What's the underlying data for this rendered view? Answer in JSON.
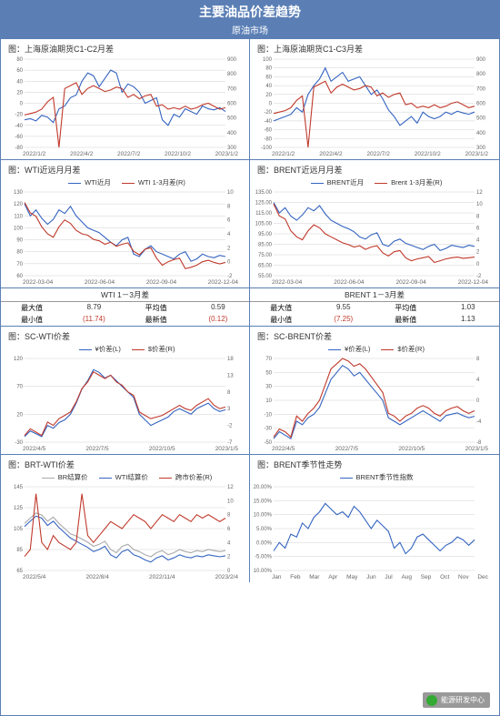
{
  "header": {
    "title": "主要油品价差趋势",
    "subtitle": "原油市场"
  },
  "colors": {
    "blue": "#3464c0",
    "red": "#c0392b",
    "grey": "#aaaaaa",
    "grid": "#d0d0d0",
    "bg": "#ffffff",
    "frame": "#5b7fb5"
  },
  "charts": {
    "c1c2": {
      "title": "图：上海原油期货C1-C2月差",
      "y1_ticks": [
        -80,
        -60,
        -40,
        -20,
        0,
        20,
        40,
        60,
        80
      ],
      "y2_ticks": [
        300,
        400,
        500,
        600,
        700,
        800,
        900
      ],
      "x_labels": [
        "2022/1/2",
        "2022/4/2",
        "2022/7/2",
        "2022/10/2",
        "2023/1/2"
      ],
      "series": [
        {
          "color": "#3464c0",
          "axis": "y1",
          "data": [
            -30,
            -28,
            -32,
            -22,
            -25,
            -35,
            -10,
            -5,
            10,
            15,
            40,
            55,
            50,
            30,
            45,
            60,
            55,
            20,
            35,
            30,
            20,
            0,
            5,
            10,
            -30,
            -40,
            -20,
            -25,
            -10,
            -15,
            -20,
            -5,
            -10,
            -12,
            -8,
            -15
          ]
        },
        {
          "color": "#c0392b",
          "axis": "y2",
          "data": [
            520,
            530,
            540,
            560,
            610,
            640,
            -200,
            700,
            720,
            740,
            660,
            700,
            720,
            700,
            680,
            690,
            710,
            700,
            640,
            660,
            630,
            650,
            660,
            580,
            590,
            560,
            570,
            560,
            580,
            560,
            570,
            590,
            600,
            580,
            560,
            570
          ]
        }
      ]
    },
    "c1c3": {
      "title": "图：上海原油期货C1-C3月差",
      "y1_ticks": [
        -100,
        -80,
        -60,
        -40,
        -20,
        0,
        20,
        40,
        60,
        80,
        100
      ],
      "y2_ticks": [
        300,
        400,
        500,
        600,
        700,
        800,
        900
      ],
      "x_labels": [
        "2022/1/2",
        "2022/4/2",
        "2022/7/2",
        "2022/10/2",
        "2023/1/2"
      ],
      "series": [
        {
          "color": "#3464c0",
          "axis": "y1",
          "data": [
            -40,
            -35,
            -30,
            -25,
            -10,
            -20,
            20,
            40,
            55,
            80,
            50,
            60,
            70,
            50,
            55,
            60,
            40,
            20,
            30,
            10,
            -15,
            -30,
            -50,
            -40,
            -30,
            -45,
            -20,
            -30,
            -35,
            -30,
            -20,
            -25,
            -18,
            -22,
            -25,
            -20
          ]
        },
        {
          "color": "#c0392b",
          "axis": "y2",
          "data": [
            530,
            540,
            550,
            570,
            620,
            650,
            -200,
            710,
            730,
            750,
            670,
            710,
            730,
            710,
            690,
            700,
            720,
            710,
            650,
            670,
            640,
            660,
            670,
            590,
            600,
            570,
            580,
            570,
            590,
            570,
            580,
            600,
            610,
            590,
            570,
            580
          ]
        }
      ]
    },
    "wti_near": {
      "title": "图：WTI近远月月差",
      "legend": [
        {
          "label": "WTI近月",
          "color": "#3464c0"
        },
        {
          "label": "WTI 1-3月差(R)",
          "color": "#c0392b"
        }
      ],
      "y1_ticks": [
        60,
        70,
        80,
        90,
        100,
        110,
        120,
        130
      ],
      "y2_ticks": [
        -2,
        0,
        2,
        4,
        6,
        8,
        10
      ],
      "x_labels": [
        "2022-03-04",
        "2022-06-04",
        "2022-09-04",
        "2022-12-04"
      ],
      "series": [
        {
          "color": "#3464c0",
          "axis": "y1",
          "data": [
            120,
            110,
            115,
            108,
            103,
            107,
            115,
            112,
            118,
            110,
            105,
            100,
            98,
            96,
            92,
            88,
            85,
            90,
            92,
            78,
            76,
            82,
            85,
            80,
            78,
            76,
            74,
            78,
            80,
            72,
            74,
            78,
            76,
            75,
            77,
            76
          ]
        },
        {
          "color": "#c0392b",
          "axis": "y2",
          "data": [
            8.5,
            7,
            6.5,
            5,
            4,
            3.5,
            5,
            6,
            5.5,
            4.5,
            4,
            3.8,
            3.2,
            3,
            2.5,
            2.8,
            2.2,
            2.5,
            2.7,
            1.5,
            1,
            1.8,
            2,
            0.5,
            -0.5,
            0,
            0.3,
            0.5,
            -1,
            -0.8,
            -0.5,
            0,
            0.2,
            -0.1,
            -0.3,
            -0.1
          ]
        }
      ]
    },
    "brent_near": {
      "title": "图：BRENT近远月月差",
      "legend": [
        {
          "label": "BRENT近月",
          "color": "#3464c0"
        },
        {
          "label": "Brent 1-3月差(R)",
          "color": "#c0392b"
        }
      ],
      "y1_ticks": [
        "55.00",
        "65.00",
        "75.00",
        "85.00",
        "95.00",
        "105.00",
        "115.00",
        "125.00",
        "135.00"
      ],
      "y2_ticks": [
        -2,
        0,
        2,
        4,
        6,
        8,
        10,
        12
      ],
      "x_labels": [
        "2022-03-04",
        "2022-06-04",
        "2022-09-04",
        "2022-12-04"
      ],
      "series": [
        {
          "color": "#3464c0",
          "axis": "y1",
          "data": [
            125,
            115,
            120,
            112,
            108,
            113,
            120,
            117,
            122,
            114,
            108,
            105,
            102,
            100,
            97,
            92,
            90,
            94,
            96,
            85,
            83,
            88,
            90,
            86,
            84,
            82,
            80,
            83,
            85,
            79,
            81,
            84,
            83,
            82,
            84,
            83
          ]
        },
        {
          "color": "#c0392b",
          "axis": "y2",
          "data": [
            10,
            8,
            7.5,
            5.5,
            4.5,
            4,
            5.5,
            6.5,
            6,
            5,
            4.5,
            4,
            3.5,
            3.2,
            2.8,
            3,
            2.4,
            2.8,
            3,
            1.8,
            1.3,
            2,
            2.2,
            1,
            0.5,
            0.8,
            1,
            1.2,
            0.2,
            0.5,
            0.8,
            1,
            1.1,
            0.9,
            1,
            1.1
          ]
        }
      ]
    },
    "sc_wti": {
      "title": "图：SC-WTI价差",
      "legend": [
        {
          "label": "¥价差(L)",
          "color": "#3464c0"
        },
        {
          "label": "$价差(R)",
          "color": "#c0392b"
        }
      ],
      "y1_ticks": [
        -30,
        20,
        70,
        120
      ],
      "y2_ticks": [
        -7,
        -2,
        3,
        8,
        13,
        18
      ],
      "x_labels": [
        "2022/4/5",
        "2022/7/5",
        "2022/10/5",
        "2023/1/5"
      ],
      "series": [
        {
          "color": "#3464c0",
          "axis": "y1",
          "data": [
            -20,
            -10,
            -15,
            -20,
            0,
            -5,
            5,
            10,
            20,
            40,
            65,
            80,
            100,
            95,
            85,
            90,
            80,
            70,
            60,
            50,
            20,
            10,
            0,
            5,
            10,
            15,
            25,
            30,
            25,
            20,
            30,
            35,
            40,
            30,
            25,
            28
          ]
        },
        {
          "color": "#c0392b",
          "axis": "y2",
          "data": [
            -5,
            -3,
            -4,
            -5,
            -1,
            -2,
            0,
            1,
            2,
            5,
            9,
            11,
            14,
            13,
            12,
            13,
            11,
            10,
            8,
            7,
            2,
            1,
            0,
            0.5,
            1,
            2,
            3,
            4,
            3,
            2.5,
            4,
            5,
            6,
            4,
            3,
            3.5
          ]
        }
      ]
    },
    "sc_brent": {
      "title": "图：SC-BRENT价差",
      "legend": [
        {
          "label": "¥价差(L)",
          "color": "#3464c0"
        },
        {
          "label": "$价差(R)",
          "color": "#c0392b"
        }
      ],
      "y1_ticks": [
        -50,
        -30,
        -10,
        10,
        30,
        50,
        70
      ],
      "y2_ticks": [
        -8,
        -4,
        0,
        4,
        8
      ],
      "x_labels": [
        "2022/4/5",
        "2022/7/5",
        "2022/10/5",
        "2023/1/5"
      ],
      "series": [
        {
          "color": "#3464c0",
          "axis": "y1",
          "data": [
            -45,
            -35,
            -40,
            -45,
            -20,
            -25,
            -15,
            -10,
            0,
            20,
            40,
            50,
            60,
            55,
            45,
            50,
            40,
            30,
            20,
            10,
            -15,
            -20,
            -25,
            -20,
            -15,
            -10,
            -5,
            -10,
            -15,
            -20,
            -12,
            -10,
            -8,
            -12,
            -15,
            -13
          ]
        },
        {
          "color": "#c0392b",
          "axis": "y2",
          "data": [
            -7,
            -5.5,
            -6,
            -7,
            -3,
            -4,
            -2.5,
            -1.5,
            0,
            3,
            6,
            7,
            8,
            7.5,
            6.5,
            7,
            6,
            4.5,
            3,
            1.5,
            -2.5,
            -3,
            -4,
            -3,
            -2.5,
            -1.5,
            -1,
            -1.5,
            -2.5,
            -3,
            -2,
            -1.5,
            -1.2,
            -2,
            -2.5,
            -2
          ]
        }
      ]
    },
    "brt_wti": {
      "title": "图：BRT-WTI价差",
      "legend": [
        {
          "label": "BR结算价",
          "color": "#aaaaaa"
        },
        {
          "label": "WTI结算价",
          "color": "#3464c0"
        },
        {
          "label": "跨市价差(R)",
          "color": "#c0392b"
        }
      ],
      "y1_ticks": [
        65,
        85,
        105,
        125,
        145
      ],
      "y2_ticks": [
        0,
        2,
        4,
        6,
        8,
        10,
        12
      ],
      "x_labels": [
        "2022/5/4",
        "2022/8/4",
        "2022/11/4",
        "2023/2/4"
      ],
      "series": [
        {
          "color": "#aaaaaa",
          "axis": "y1",
          "data": [
            110,
            115,
            120,
            118,
            112,
            116,
            110,
            105,
            100,
            98,
            95,
            92,
            88,
            90,
            93,
            85,
            82,
            88,
            90,
            85,
            83,
            80,
            78,
            82,
            84,
            80,
            82,
            85,
            83,
            82,
            84,
            83,
            85,
            84,
            83,
            84
          ]
        },
        {
          "color": "#3464c0",
          "axis": "y1",
          "data": [
            107,
            112,
            117,
            115,
            108,
            112,
            106,
            101,
            96,
            93,
            90,
            87,
            83,
            85,
            88,
            80,
            77,
            83,
            85,
            80,
            78,
            75,
            73,
            77,
            79,
            75,
            77,
            80,
            78,
            77,
            79,
            78,
            80,
            79,
            78,
            79
          ]
        },
        {
          "color": "#c0392b",
          "axis": "y2",
          "data": [
            2,
            3,
            11,
            4,
            3,
            5,
            4,
            3.5,
            3,
            4,
            11,
            5,
            4,
            5,
            6,
            7,
            6.5,
            6,
            7,
            8,
            7.5,
            7,
            6,
            7,
            8,
            7.5,
            7,
            8,
            7.5,
            7,
            8,
            7.5,
            8,
            7.5,
            7,
            7.5
          ]
        }
      ]
    },
    "brent_season": {
      "title": "图：BRENT季节性走势",
      "legend": [
        {
          "label": "BRENT季节性指数",
          "color": "#3464c0"
        }
      ],
      "y1_ticks": [
        "-10.00%",
        "-5.00%",
        "0.00%",
        "5.00%",
        "10.00%",
        "15.00%",
        "20.00%"
      ],
      "x_labels": [
        "Jan",
        "Feb",
        "Mar",
        "Apr",
        "May",
        "Jun",
        "Jul",
        "Aug",
        "Sep",
        "Oct",
        "Nov",
        "Dec"
      ],
      "series": [
        {
          "color": "#3464c0",
          "axis": "y1",
          "data": [
            -3,
            0,
            -2,
            3,
            2,
            7,
            5,
            9,
            11,
            14,
            12,
            10,
            11,
            9,
            13,
            11,
            8,
            5,
            8,
            6,
            4,
            -2,
            0,
            -4,
            -2,
            2,
            3,
            1,
            -1,
            -3,
            -1,
            0,
            2,
            1,
            -1,
            1
          ]
        }
      ]
    }
  },
  "stats": {
    "wti": {
      "title": "WTI 1－3月差",
      "rows": [
        {
          "k1": "最大值",
          "v1": "8.79",
          "v1_neg": false,
          "k2": "平均值",
          "v2": "0.59",
          "v2_neg": false
        },
        {
          "k1": "最小值",
          "v1": "(11.74)",
          "v1_neg": true,
          "k2": "最新值",
          "v2": "(0.12)",
          "v2_neg": true
        }
      ]
    },
    "brent": {
      "title": "BRENT 1－3月差",
      "rows": [
        {
          "k1": "最大值",
          "v1": "9.55",
          "v1_neg": false,
          "k2": "平均值",
          "v2": "1.03",
          "v2_neg": false
        },
        {
          "k1": "最小值",
          "v1": "(7.25)",
          "v1_neg": true,
          "k2": "最新值",
          "v2": "1.13",
          "v2_neg": false
        }
      ]
    }
  },
  "watermark": "能源研发中心"
}
